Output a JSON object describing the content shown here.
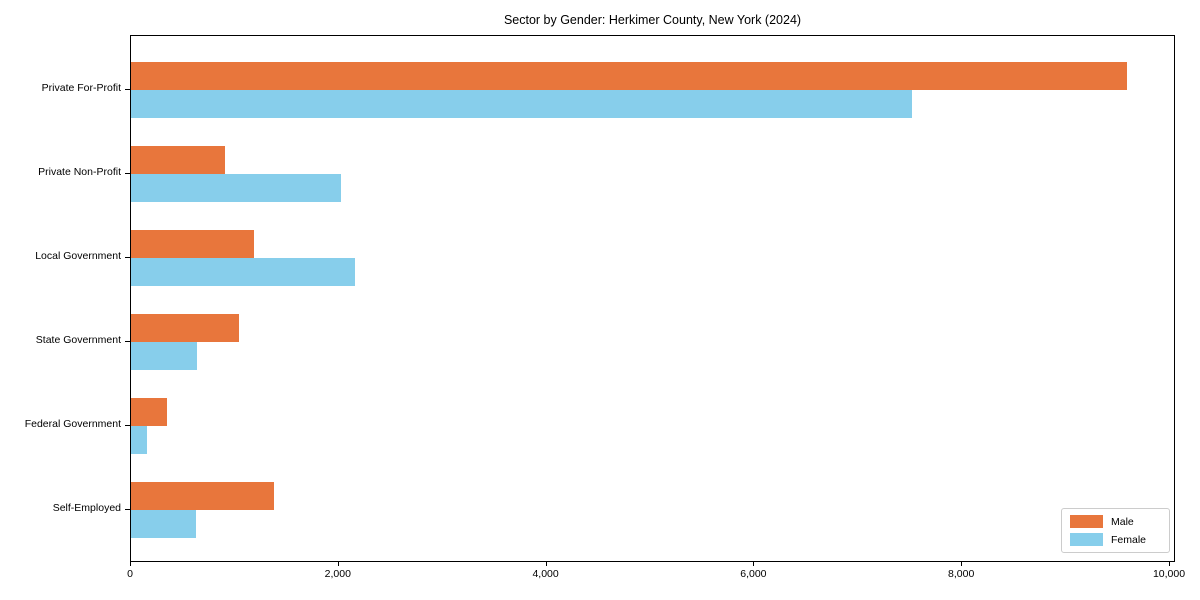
{
  "chart_data": {
    "type": "bar",
    "orientation": "horizontal",
    "title": "Sector by Gender: Herkimer County, New York (2024)",
    "categories": [
      "Private For-Profit",
      "Private Non-Profit",
      "Local Government",
      "State Government",
      "Federal Government",
      "Self-Employed"
    ],
    "series": [
      {
        "name": "Male",
        "color": "#e8763c",
        "values": [
          9590,
          900,
          1180,
          1040,
          350,
          1380
        ]
      },
      {
        "name": "Female",
        "color": "#87ceeb",
        "values": [
          7520,
          2020,
          2160,
          640,
          150,
          630
        ]
      }
    ],
    "xlabel": "",
    "ylabel": "",
    "xlim": [
      0,
      10000
    ],
    "x_tick_values": [
      0,
      2000,
      4000,
      6000,
      8000,
      10000
    ],
    "x_tick_labels": [
      "0",
      "2,000",
      "4,000",
      "6,000",
      "8,000",
      "10,000"
    ],
    "legend_position": "lower right",
    "grid": false,
    "background_color": "#ffffff",
    "axis_color": "#000000"
  }
}
